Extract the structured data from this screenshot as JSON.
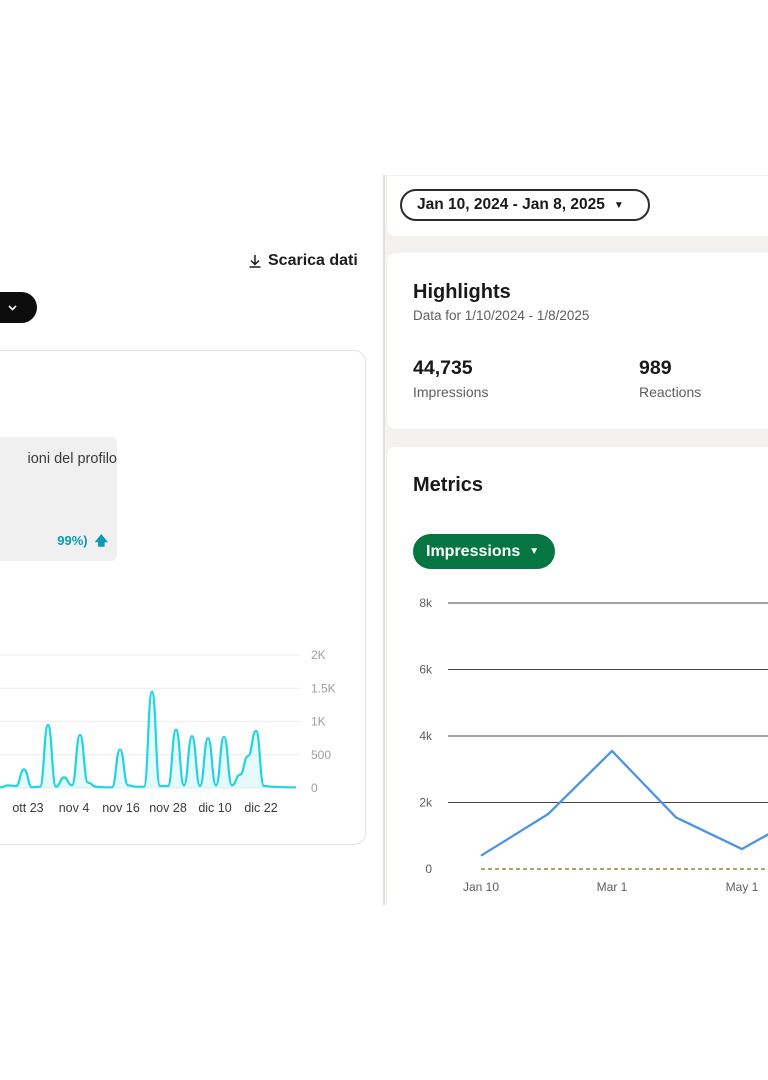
{
  "left": {
    "download_label": "Scarica dati",
    "metric_title": "ioni del profilo",
    "metric_change": "99%)",
    "colors": {
      "accent": "#22d3e0",
      "change_text": "#0b99b5"
    }
  },
  "right": {
    "date_range": "Jan 10, 2024 - Jan 8, 2025",
    "highlights": {
      "title": "Highlights",
      "subtitle": "Data for 1/10/2024 - 1/8/2025",
      "stats": [
        {
          "value": "44,735",
          "label": "Impressions"
        },
        {
          "value": "989",
          "label": "Reactions"
        }
      ]
    },
    "metrics": {
      "title": "Metrics",
      "dropdown_label": "Impressions",
      "colors": {
        "pill": "#057642",
        "line": "#4c93e6",
        "baseline": "#8d8a3c"
      }
    }
  },
  "chart_data": [
    {
      "type": "area",
      "title": "",
      "xlabel": "",
      "ylabel": "",
      "x_tick_labels": [
        "ott 23",
        "nov 4",
        "nov 16",
        "nov 28",
        "dic 10",
        "dic 22"
      ],
      "y_tick_labels": [
        "2K",
        "1.5K",
        "1K",
        "500",
        "0"
      ],
      "ylim": [
        0,
        2000
      ],
      "grid": true,
      "series": [
        {
          "values": [
            10,
            40,
            30,
            280,
            10,
            20,
            950,
            20,
            160,
            40,
            800,
            80,
            20,
            10,
            10,
            580,
            40,
            20,
            20,
            1450,
            30,
            30,
            880,
            40,
            780,
            30,
            750,
            40,
            770,
            40,
            200,
            480,
            860,
            30,
            20,
            15,
            10,
            10
          ]
        }
      ]
    },
    {
      "type": "line",
      "title": "",
      "xlabel": "",
      "ylabel": "",
      "x": [
        "Jan 10",
        "Feb 4",
        "Mar 1",
        "Mar 27",
        "Apr 21",
        "May 16"
      ],
      "x_tick_labels": [
        "Jan 10",
        "Mar 1",
        "May 1"
      ],
      "y_tick_labels": [
        "8k",
        "6k",
        "4k",
        "2k",
        "0"
      ],
      "ylim": [
        0,
        8000
      ],
      "grid": true,
      "series": [
        {
          "values": [
            400,
            1650,
            3550,
            1550,
            600,
            1650
          ]
        },
        {
          "values": [
            0,
            0,
            0,
            0,
            0,
            0
          ]
        }
      ]
    }
  ]
}
